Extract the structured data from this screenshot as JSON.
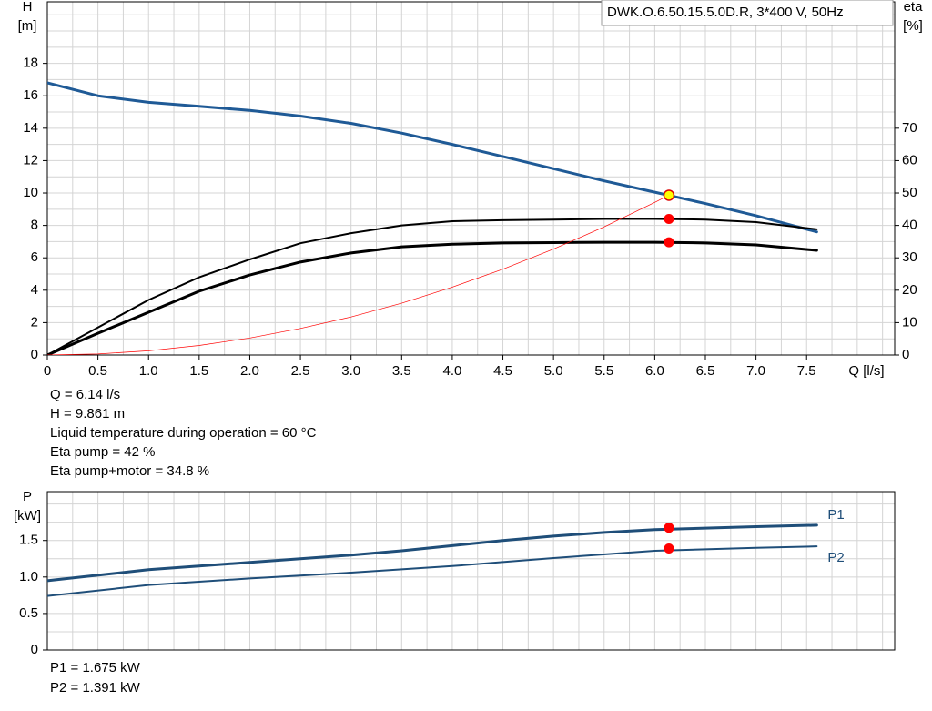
{
  "chart_data": [
    {
      "type": "line",
      "ylabel": [
        "H",
        "[m]"
      ],
      "y2label": [
        "eta",
        "[%]"
      ],
      "xlabel": "Q [l/s]",
      "legend_box": "DWK.O.6.50.15.5.0D.R, 3*400 V, 50Hz",
      "xlim": [
        0,
        8.37
      ],
      "xticks": [
        0,
        0.5,
        {
          "value": 1,
          "label": "1.0"
        },
        1.5,
        {
          "value": 2,
          "label": "2.0"
        },
        2.5,
        {
          "value": 3,
          "label": "3.0"
        },
        3.5,
        {
          "value": 4,
          "label": "4.0"
        },
        4.5,
        {
          "value": 5,
          "label": "5.0"
        },
        5.5,
        {
          "value": 6,
          "label": "6.0"
        },
        6.5,
        {
          "value": 7,
          "label": "7.0"
        },
        7.5
      ],
      "ylim": [
        0,
        21.8
      ],
      "yticks": [
        0,
        2,
        4,
        6,
        8,
        10,
        12,
        14,
        16,
        18
      ],
      "y2lim": [
        0,
        109
      ],
      "y2ticks": [
        0,
        10,
        20,
        30,
        40,
        50,
        60,
        70
      ],
      "grid": true,
      "xgrid_step": 0.25,
      "ygrid_step": 1,
      "series": [
        {
          "color": "#1f5a96",
          "width": 3,
          "x": [
            0,
            0.5,
            1,
            1.5,
            2,
            2.5,
            3,
            3.5,
            4,
            4.5,
            5,
            5.5,
            6,
            6.5,
            7,
            7.6
          ],
          "values": [
            16.8,
            16.0,
            15.6,
            15.35,
            15.1,
            14.75,
            14.3,
            13.7,
            13.0,
            12.25,
            11.5,
            10.75,
            10.05,
            9.35,
            8.6,
            7.6
          ]
        },
        {
          "color": "#000000",
          "width": 2,
          "axis": "y2",
          "x": [
            0,
            0.5,
            1,
            1.5,
            2,
            2.5,
            3,
            3.5,
            4,
            4.5,
            5,
            5.5,
            6,
            6.5,
            7,
            7.6
          ],
          "values": [
            0,
            8.5,
            17,
            24,
            29.5,
            34.5,
            37.6,
            40,
            41.3,
            41.6,
            41.8,
            42,
            42,
            41.8,
            41,
            38.8
          ]
        },
        {
          "color": "#000000",
          "width": 3,
          "axis": "y2",
          "x": [
            0,
            0.5,
            1,
            1.5,
            2,
            2.5,
            3,
            3.5,
            4,
            4.5,
            5,
            5.5,
            6,
            6.5,
            7,
            7.6
          ],
          "values": [
            0,
            6.7,
            13.2,
            19.7,
            24.7,
            28.7,
            31.5,
            33.4,
            34.2,
            34.6,
            34.7,
            34.8,
            34.8,
            34.6,
            34.0,
            32.3
          ]
        },
        {
          "color": "#ff0000",
          "width": 0.7,
          "x": [
            0,
            0.5,
            1,
            1.5,
            2,
            2.5,
            3,
            3.5,
            4,
            4.5,
            5,
            5.5,
            6,
            6.14
          ],
          "values": [
            0,
            0.065,
            0.26,
            0.59,
            1.05,
            1.64,
            2.35,
            3.2,
            4.19,
            5.3,
            6.54,
            7.91,
            9.42,
            9.861
          ]
        }
      ],
      "markers": [
        {
          "x": 6.14,
          "y": 9.861,
          "color": "#ffff00"
        },
        {
          "x": 6.14,
          "y": 42,
          "axis": "y2",
          "color": "#ff0000"
        },
        {
          "x": 6.14,
          "y": 34.8,
          "axis": "y2",
          "color": "#ff0000"
        }
      ],
      "notes": [
        "Q = 6.14 l/s",
        "H = 9.861 m",
        "Liquid temperature during operation = 60 °C",
        "Eta pump = 42 %",
        "Eta pump+motor = 34.8 %"
      ]
    },
    {
      "type": "line",
      "ylabel": [
        "P",
        "[kW]"
      ],
      "xlim": [
        0,
        8.37
      ],
      "ylim": [
        0,
        2.17
      ],
      "yticks": [
        0,
        0.5,
        {
          "value": 1,
          "label": "1.0"
        },
        1.5
      ],
      "grid": true,
      "xgrid_step": 0.25,
      "ygrid_step": 0.25,
      "series": [
        {
          "name": "P1",
          "color": "#1f4e79",
          "width": 3,
          "x": [
            0,
            1,
            2,
            3,
            3.5,
            4,
            4.5,
            5,
            5.5,
            6,
            7,
            7.6
          ],
          "values": [
            0.95,
            1.1,
            1.2,
            1.3,
            1.36,
            1.43,
            1.5,
            1.56,
            1.61,
            1.65,
            1.69,
            1.71
          ]
        },
        {
          "name": "P2",
          "color": "#1f4e79",
          "width": 2,
          "x": [
            0,
            1,
            2,
            3,
            4,
            5,
            6,
            7,
            7.6
          ],
          "values": [
            0.74,
            0.89,
            0.98,
            1.06,
            1.15,
            1.26,
            1.36,
            1.4,
            1.42
          ]
        }
      ],
      "markers": [
        {
          "x": 6.14,
          "y": 1.675,
          "color": "#ff0000"
        },
        {
          "x": 6.14,
          "y": 1.391,
          "color": "#ff0000"
        }
      ],
      "notes": [
        "P1 = 1.675 kW",
        "P2 = 1.391 kW"
      ]
    }
  ]
}
